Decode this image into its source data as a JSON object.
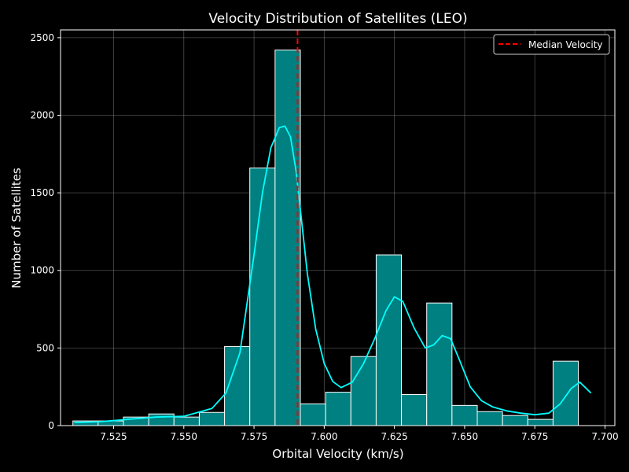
{
  "chart_data": {
    "type": "bar",
    "title": "Velocity Distribution of Satellites (LEO)",
    "xlabel": "Orbital Velocity (km/s)",
    "ylabel": "Number of Satellites",
    "xlim": [
      7.5061,
      7.7035
    ],
    "ylim": [
      0,
      2550
    ],
    "xticks": [
      7.525,
      7.55,
      7.575,
      7.6,
      7.625,
      7.65,
      7.675,
      7.7
    ],
    "xtick_labels": [
      "7.525",
      "7.550",
      "7.575",
      "7.600",
      "7.625",
      "7.650",
      "7.675",
      "7.700"
    ],
    "yticks": [
      0,
      500,
      1000,
      1500,
      2000,
      2500
    ],
    "ytick_labels": [
      "0",
      "500",
      "1000",
      "1500",
      "2000",
      "2500"
    ],
    "grid": true,
    "legend_position": "top-right",
    "bar_color": "#008080",
    "bar_edge_color": "#ffffff",
    "kde_color": "#00ffff",
    "median_color": "#ff0000",
    "bins": {
      "edges": [
        7.5105,
        7.5195,
        7.5285,
        7.5375,
        7.5465,
        7.5555,
        7.5645,
        7.5735,
        7.5825,
        7.5915,
        7.6005,
        7.6095,
        7.6185,
        7.6275,
        7.6365,
        7.6455,
        7.6545,
        7.6635,
        7.6725,
        7.6815,
        7.6905
      ],
      "counts": [
        30,
        30,
        55,
        75,
        55,
        85,
        510,
        1660,
        2420,
        140,
        215,
        445,
        1100,
        200,
        790,
        130,
        90,
        65,
        40,
        415
      ]
    },
    "kde": {
      "x": [
        7.511,
        7.52,
        7.53,
        7.54,
        7.55,
        7.56,
        7.565,
        7.57,
        7.575,
        7.578,
        7.581,
        7.584,
        7.586,
        7.588,
        7.59,
        7.592,
        7.594,
        7.597,
        7.6,
        7.603,
        7.606,
        7.61,
        7.614,
        7.618,
        7.622,
        7.625,
        7.628,
        7.632,
        7.636,
        7.639,
        7.642,
        7.645,
        7.648,
        7.652,
        7.656,
        7.66,
        7.665,
        7.67,
        7.675,
        7.68,
        7.684,
        7.688,
        7.691,
        7.695
      ],
      "y": [
        20,
        25,
        40,
        55,
        60,
        110,
        210,
        470,
        1100,
        1500,
        1790,
        1920,
        1930,
        1860,
        1640,
        1310,
        980,
        620,
        400,
        285,
        245,
        280,
        400,
        560,
        740,
        830,
        800,
        630,
        500,
        520,
        580,
        560,
        430,
        250,
        160,
        120,
        95,
        80,
        70,
        80,
        140,
        240,
        280,
        210
      ]
    },
    "median": {
      "x": 7.5905,
      "label": "Median Velocity"
    }
  }
}
